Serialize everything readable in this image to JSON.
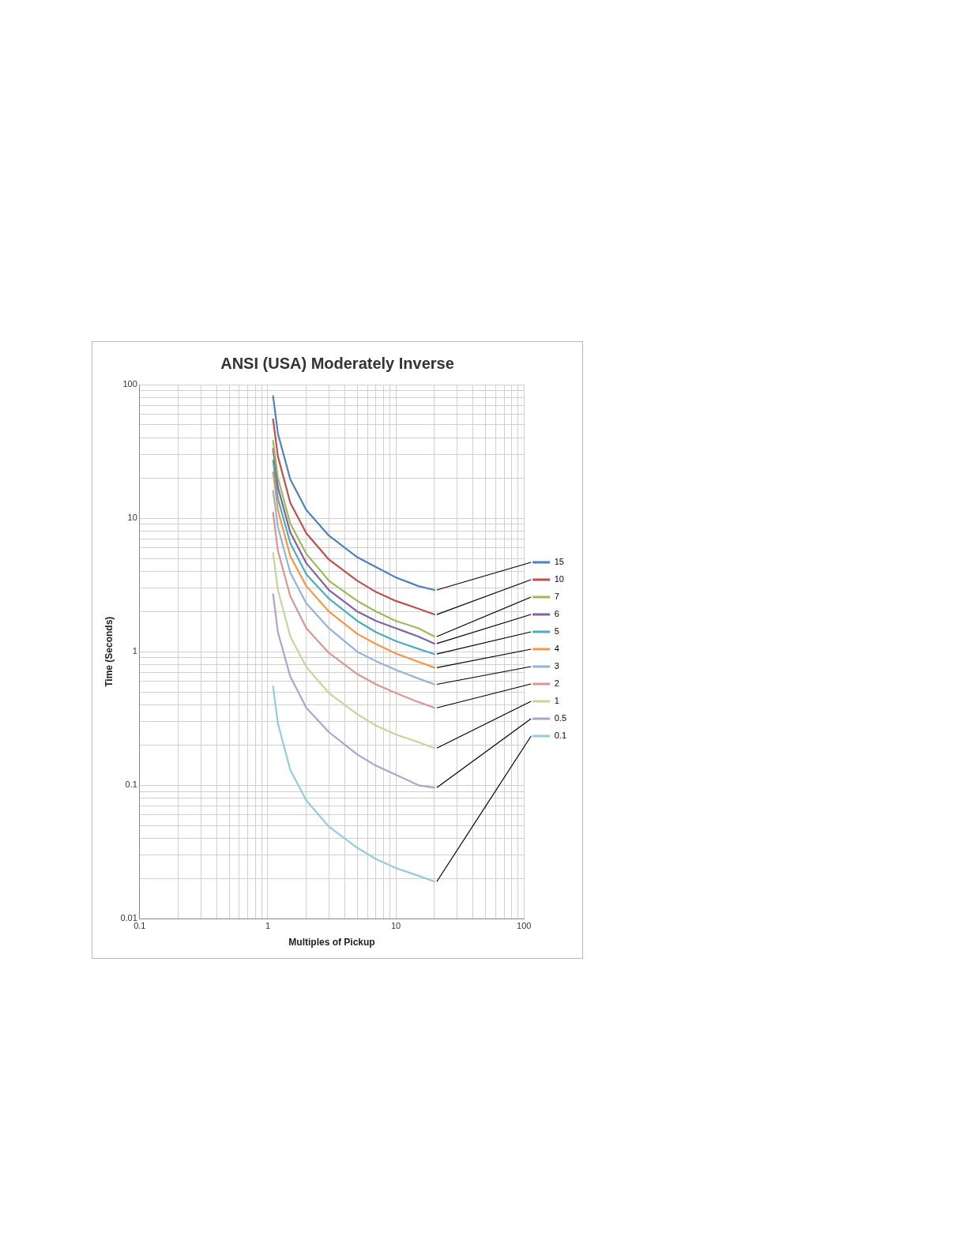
{
  "chart_data": {
    "type": "line",
    "title": "ANSI (USA) Moderately Inverse",
    "xlabel": "Multiples of Pickup",
    "ylabel": "Time (Seconds)",
    "log": "xy",
    "grid": true,
    "legend": "right",
    "marker": "none",
    "line_style": "solid",
    "x": [
      1.1,
      1.2,
      1.5,
      2,
      3,
      5,
      7,
      10,
      15,
      20
    ],
    "xlim": [
      0.1,
      100
    ],
    "ylim": [
      0.01,
      100
    ],
    "xticks": [
      0.1,
      {
        "value": 0.2,
        "label": null
      },
      {
        "value": 0.3,
        "label": null
      },
      {
        "value": 0.4,
        "label": null
      },
      {
        "value": 0.5,
        "label": null
      },
      {
        "value": 0.6,
        "label": null
      },
      {
        "value": 0.7,
        "label": null
      },
      {
        "value": 0.8,
        "label": null
      },
      {
        "value": 0.9,
        "label": null
      },
      1,
      {
        "value": 2,
        "label": null
      },
      {
        "value": 3,
        "label": null
      },
      {
        "value": 4,
        "label": null
      },
      {
        "value": 5,
        "label": null
      },
      {
        "value": 6,
        "label": null
      },
      {
        "value": 7,
        "label": null
      },
      {
        "value": 8,
        "label": null
      },
      {
        "value": 9,
        "label": null
      },
      10,
      {
        "value": 20,
        "label": null
      },
      {
        "value": 30,
        "label": null
      },
      {
        "value": 40,
        "label": null
      },
      {
        "value": 50,
        "label": null
      },
      {
        "value": 60,
        "label": null
      },
      {
        "value": 70,
        "label": null
      },
      {
        "value": 80,
        "label": null
      },
      {
        "value": 90,
        "label": null
      },
      100
    ],
    "yticks": [
      0.01,
      {
        "value": 0.02,
        "label": null
      },
      {
        "value": 0.03,
        "label": null
      },
      {
        "value": 0.04,
        "label": null
      },
      {
        "value": 0.05,
        "label": null
      },
      {
        "value": 0.06,
        "label": null
      },
      {
        "value": 0.07,
        "label": null
      },
      {
        "value": 0.08,
        "label": null
      },
      {
        "value": 0.09,
        "label": null
      },
      0.1,
      {
        "value": 0.2,
        "label": null
      },
      {
        "value": 0.3,
        "label": null
      },
      {
        "value": 0.4,
        "label": null
      },
      {
        "value": 0.5,
        "label": null
      },
      {
        "value": 0.6,
        "label": null
      },
      {
        "value": 0.7,
        "label": null
      },
      {
        "value": 0.8,
        "label": null
      },
      {
        "value": 0.9,
        "label": null
      },
      1,
      {
        "value": 2,
        "label": null
      },
      {
        "value": 3,
        "label": null
      },
      {
        "value": 4,
        "label": null
      },
      {
        "value": 5,
        "label": null
      },
      {
        "value": 6,
        "label": null
      },
      {
        "value": 7,
        "label": null
      },
      {
        "value": 8,
        "label": null
      },
      {
        "value": 9,
        "label": null
      },
      10,
      {
        "value": 20,
        "label": null
      },
      {
        "value": 30,
        "label": null
      },
      {
        "value": 40,
        "label": null
      },
      {
        "value": 50,
        "label": null
      },
      {
        "value": 60,
        "label": null
      },
      {
        "value": 70,
        "label": null
      },
      {
        "value": 80,
        "label": null
      },
      {
        "value": 90,
        "label": null
      },
      100
    ],
    "series": [
      {
        "name": "15",
        "color": "#4f81bd",
        "values": [
          82,
          43,
          19.5,
          11.5,
          7.4,
          5.1,
          4.3,
          3.6,
          3.1,
          2.9
        ]
      },
      {
        "name": "10",
        "color": "#c0504d",
        "values": [
          55,
          29,
          13,
          7.7,
          4.9,
          3.4,
          2.8,
          2.4,
          2.1,
          1.9
        ]
      },
      {
        "name": "7",
        "color": "#9bbb59",
        "values": [
          38,
          20,
          9.1,
          5.4,
          3.4,
          2.4,
          2.0,
          1.7,
          1.5,
          1.3
        ]
      },
      {
        "name": "6",
        "color": "#8064a2",
        "values": [
          33,
          17,
          7.8,
          4.6,
          2.9,
          2.0,
          1.7,
          1.5,
          1.3,
          1.15
        ]
      },
      {
        "name": "5",
        "color": "#4bacc6",
        "values": [
          27,
          14,
          6.5,
          3.8,
          2.5,
          1.7,
          1.4,
          1.2,
          1.05,
          0.96
        ]
      },
      {
        "name": "4",
        "color": "#f79646",
        "values": [
          22,
          11.5,
          5.2,
          3.1,
          2.0,
          1.36,
          1.14,
          0.97,
          0.84,
          0.76
        ]
      },
      {
        "name": "3",
        "color": "#95b3d7",
        "values": [
          16,
          8.6,
          3.9,
          2.3,
          1.5,
          1.0,
          0.85,
          0.73,
          0.63,
          0.57
        ]
      },
      {
        "name": "2",
        "color": "#d99694",
        "values": [
          11,
          5.7,
          2.6,
          1.5,
          0.98,
          0.68,
          0.57,
          0.49,
          0.42,
          0.38
        ]
      },
      {
        "name": "1",
        "color": "#c3d69b",
        "values": [
          5.5,
          2.9,
          1.3,
          0.77,
          0.49,
          0.34,
          0.28,
          0.24,
          0.21,
          0.19
        ]
      },
      {
        "name": "0.5",
        "color": "#b3a2c7",
        "values": [
          2.7,
          1.4,
          0.65,
          0.38,
          0.25,
          0.17,
          0.14,
          0.12,
          0.1,
          0.096
        ]
      },
      {
        "name": "0.1",
        "color": "#93cddd",
        "values": [
          0.55,
          0.29,
          0.13,
          0.077,
          0.049,
          0.034,
          0.028,
          0.024,
          0.021,
          0.019
        ]
      }
    ]
  }
}
